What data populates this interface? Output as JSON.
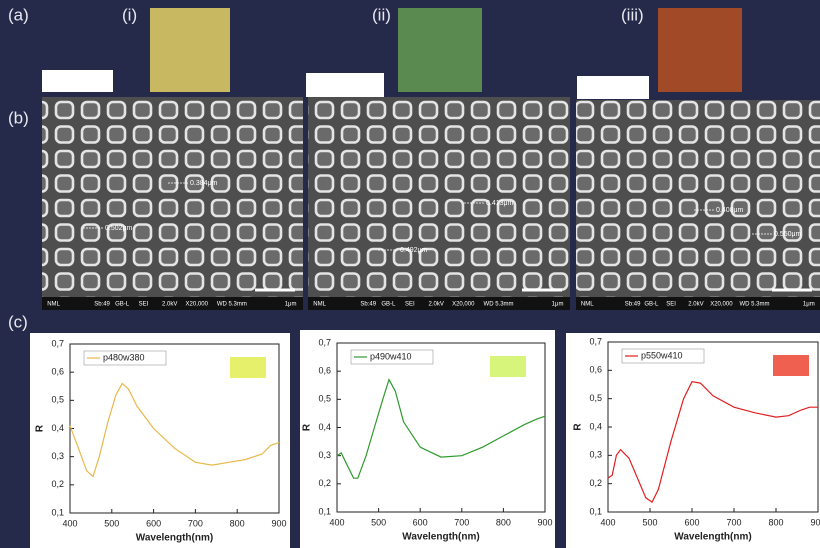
{
  "figure": {
    "labels": {
      "a": "(a)",
      "b": "(b)",
      "c": "(c)",
      "i": "(i)",
      "ii": "(ii)",
      "iii": "(iii)"
    }
  },
  "sem": [
    {
      "annotations": [
        "0.384μm",
        "0.502μm"
      ],
      "footer": [
        "NML",
        "Sb:49",
        "GB-L",
        "SEI",
        "2.0kV",
        "X20,000",
        "WD 5.3mm",
        "1μm"
      ]
    },
    {
      "annotations": [
        "0.413μm",
        "0.492μm"
      ],
      "footer": [
        "NML",
        "Sb:49",
        "GB-L",
        "SEI",
        "2.0kV",
        "X20,000",
        "WD 5.3mm",
        "1μm"
      ]
    },
    {
      "annotations": [
        "0.408μm",
        "0.550μm"
      ],
      "footer": [
        "NML",
        "Sb:49",
        "GB-L",
        "SEI",
        "2.0kV",
        "X20,000",
        "WD 5.3mm",
        "1μm"
      ]
    }
  ],
  "chart_data": [
    {
      "type": "line",
      "x_label": "Wavelength(nm)",
      "y_label": "R",
      "swatch_color": "#e6f06a",
      "x": [
        400,
        420,
        440,
        455,
        470,
        490,
        510,
        525,
        540,
        560,
        600,
        650,
        700,
        740,
        780,
        820,
        860,
        880,
        900
      ],
      "series": [
        {
          "name": "p480w380",
          "color": "#e8b84a",
          "values": [
            0.41,
            0.33,
            0.25,
            0.23,
            0.3,
            0.42,
            0.52,
            0.56,
            0.54,
            0.48,
            0.4,
            0.33,
            0.28,
            0.27,
            0.28,
            0.29,
            0.31,
            0.34,
            0.35
          ]
        }
      ],
      "xlim": [
        400,
        900
      ],
      "xticks": [
        400,
        500,
        600,
        700,
        800,
        900
      ],
      "ylim": [
        0.1,
        0.7
      ],
      "yticks": [
        {
          "value": 0.1,
          "label": "0,1"
        },
        {
          "value": 0.2,
          "label": "0,2"
        },
        {
          "value": 0.3,
          "label": "0,3"
        },
        {
          "value": 0.4,
          "label": "0,4"
        },
        {
          "value": 0.5,
          "label": "0,5"
        },
        {
          "value": 0.6,
          "label": "0,6"
        },
        {
          "value": 0.7,
          "label": "0,7"
        }
      ]
    },
    {
      "type": "line",
      "x_label": "Wavelength(nm)",
      "y_label": "R",
      "swatch_color": "#d6f57a",
      "x": [
        400,
        410,
        420,
        440,
        450,
        470,
        490,
        510,
        525,
        540,
        560,
        600,
        650,
        700,
        750,
        800,
        850,
        880,
        900
      ],
      "series": [
        {
          "name": "p490w410",
          "color": "#2e9a2e",
          "values": [
            0.3,
            0.31,
            0.28,
            0.22,
            0.22,
            0.3,
            0.4,
            0.5,
            0.57,
            0.53,
            0.42,
            0.33,
            0.295,
            0.3,
            0.33,
            0.37,
            0.41,
            0.43,
            0.44
          ]
        }
      ],
      "xlim": [
        400,
        900
      ],
      "xticks": [
        400,
        500,
        600,
        700,
        800,
        900
      ],
      "ylim": [
        0.1,
        0.7
      ],
      "yticks": [
        {
          "value": 0.1,
          "label": "0,1"
        },
        {
          "value": 0.2,
          "label": "0,2"
        },
        {
          "value": 0.3,
          "label": "0,3"
        },
        {
          "value": 0.4,
          "label": "0,4"
        },
        {
          "value": 0.5,
          "label": "0,5"
        },
        {
          "value": 0.6,
          "label": "0,6"
        },
        {
          "value": 0.7,
          "label": "0,7"
        }
      ]
    },
    {
      "type": "line",
      "x_label": "Wavelength(nm)",
      "y_label": "R",
      "swatch_color": "#f06050",
      "x": [
        400,
        410,
        420,
        430,
        450,
        470,
        490,
        505,
        520,
        550,
        580,
        600,
        620,
        650,
        700,
        750,
        800,
        830,
        860,
        880,
        900
      ],
      "series": [
        {
          "name": "p550w410",
          "color": "#e02020",
          "values": [
            0.22,
            0.23,
            0.3,
            0.32,
            0.29,
            0.22,
            0.15,
            0.135,
            0.18,
            0.35,
            0.5,
            0.56,
            0.555,
            0.51,
            0.47,
            0.45,
            0.435,
            0.44,
            0.46,
            0.47,
            0.47
          ]
        }
      ],
      "xlim": [
        400,
        900
      ],
      "xticks": [
        400,
        500,
        600,
        700,
        800,
        900
      ],
      "ylim": [
        0.1,
        0.7
      ],
      "yticks": [
        {
          "value": 0.1,
          "label": "0,1"
        },
        {
          "value": 0.2,
          "label": "0,2"
        },
        {
          "value": 0.3,
          "label": "0,3"
        },
        {
          "value": 0.4,
          "label": "0,4"
        },
        {
          "value": 0.5,
          "label": "0,5"
        },
        {
          "value": 0.6,
          "label": "0,6"
        },
        {
          "value": 0.7,
          "label": "0,7"
        }
      ]
    }
  ]
}
